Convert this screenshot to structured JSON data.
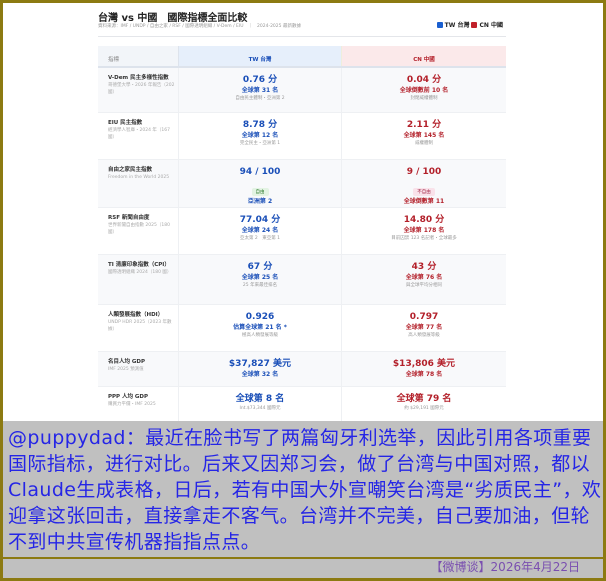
{
  "header": {
    "title": "台灣 vs 中國　國際指標全面比較",
    "source": "資料來源：IMF / UNDP / 自由之家 / RSF / 國際透明組織 / V-Dem / EIU　｜　2024-2025 最新數據",
    "legend_tw": "TW 台灣",
    "legend_cn": "CN 中國",
    "tw_color": "#1a5fd0",
    "cn_color": "#c0202a"
  },
  "table": {
    "columns": [
      "指標",
      "TW 台灣",
      "CN 中國"
    ],
    "rows": [
      {
        "name": "V-Dem 民主多樣性指數",
        "sub": "哥德堡大學・2026 年報告（202 國）",
        "tw": {
          "value": "0.76 分",
          "rank": "全球第 31 名",
          "note": "自由民主體制・亞洲第 2"
        },
        "cn": {
          "value": "0.04 分",
          "rank": "全球倒數前 10 名",
          "note": "封閉威權體制"
        }
      },
      {
        "name": "EIU 民主指數",
        "sub": "經濟學人智庫・2024 年（167 國）",
        "tw": {
          "value": "8.78 分",
          "rank": "全球第 12 名",
          "note": "完全民主・亞洲第 1"
        },
        "cn": {
          "value": "2.11 分",
          "rank": "全球第 145 名",
          "note": "威權體制"
        }
      },
      {
        "name": "自由之家民主指數",
        "sub": "Freedom in the World 2025",
        "tw": {
          "value": "94 / 100",
          "badge": "自由",
          "rank": "亞洲第 2"
        },
        "cn": {
          "value": "9 / 100",
          "badge": "不自由",
          "rank": "全球倒數第 11"
        }
      },
      {
        "name": "RSF 新聞自由度",
        "sub": "世界新聞自由指數 2025（180 國）",
        "tw": {
          "value": "77.04 分",
          "rank": "全球第 24 名",
          "note": "亞太第 2　東亞第 1"
        },
        "cn": {
          "value": "14.80 分",
          "rank": "全球第 178 名",
          "note": "目前囚禁 123 名記者・全球最多"
        }
      },
      {
        "name": "TI 清廉印象指數（CPI）",
        "sub": "國際透明組織 2024（180 國）",
        "tw": {
          "value": "67 分",
          "rank": "全球第 25 名",
          "note": "25 年來最佳排名"
        },
        "cn": {
          "value": "43 分",
          "rank": "全球第 76 名",
          "note": "與全球平均分相同"
        }
      },
      {
        "name": "人類發展指數（HDI）",
        "sub": "UNDP HDR 2025（2023 年數據）",
        "tw": {
          "value": "0.926",
          "rank": "估算全球第 21 名 *",
          "note": "極高人類發展等級"
        },
        "cn": {
          "value": "0.797",
          "rank": "全球第 77 名",
          "note": "高人類發展等級"
        }
      },
      {
        "name": "名目人均 GDP",
        "sub": "IMF 2025 預測值",
        "tw": {
          "value": "$37,827 美元",
          "rank": "全球第 32 名"
        },
        "cn": {
          "value": "$13,806 美元",
          "rank": "全球第 78 名"
        }
      },
      {
        "name": "PPP 人均 GDP",
        "sub": "購買力平價・IMF 2025",
        "tw": {
          "value": "全球第 8 名",
          "note": "Int.$73,344 國際元"
        },
        "cn": {
          "value": "全球第 79 名",
          "note": "約 $29,191 國際元"
        }
      }
    ]
  },
  "post": {
    "text": "@puppydad：最近在脸书写了两篇匈牙利选举，因此引用各项重要国际指标，进行对比。后来又因郑习会，做了台湾与中国对照，都以Claude生成表格，日后，若有中国大外宣嘲笑台湾是“劣质民主”，欢迎拿这张回击，直接拿走不客气。台湾并不完美，自己要加油，但轮不到中共宣传机器指指点点。",
    "footer": "【微博谈】2026年4月22日"
  }
}
